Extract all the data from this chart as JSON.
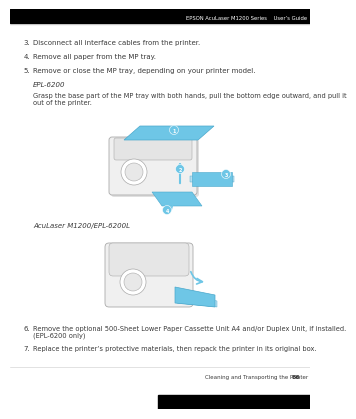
{
  "header_text": "EPSON AcuLaser M1200 Series    User’s Guide",
  "footer_left": "Cleaning and Transporting the Printer",
  "footer_page": "86",
  "background_color": "#ffffff",
  "header_bg": "#000000",
  "footer_bar_color": "#000000",
  "items": [
    {
      "num": "3.",
      "text": "Disconnect all interface cables from the printer."
    },
    {
      "num": "4.",
      "text": "Remove all paper from the MP tray."
    },
    {
      "num": "5.",
      "text": "Remove or close the MP tray, depending on your printer model."
    }
  ],
  "label_epl6200": "EPL-6200",
  "desc_epl6200": "Grasp the base part of the MP tray with both hands, pull the bottom edge outward, and pull it\nout of the printer.",
  "label_aculaser": "AcuLaser M1200/EPL-6200L",
  "item6": {
    "num": "6.",
    "text": "Remove the optional 500-Sheet Lower Paper Cassette Unit A4 and/or Duplex Unit, if installed.\n(EPL-6200 only)"
  },
  "item7": {
    "num": "7.",
    "text": "Replace the printer’s protective materials, then repack the printer in its original box."
  },
  "text_color": "#3a3a3a",
  "blue_color": "#6ec6e6",
  "blue_dark": "#4aa8cc",
  "printer_body_color": "#f0f0f0",
  "printer_outline": "#aaaaaa",
  "printer_shadow": "#cccccc"
}
